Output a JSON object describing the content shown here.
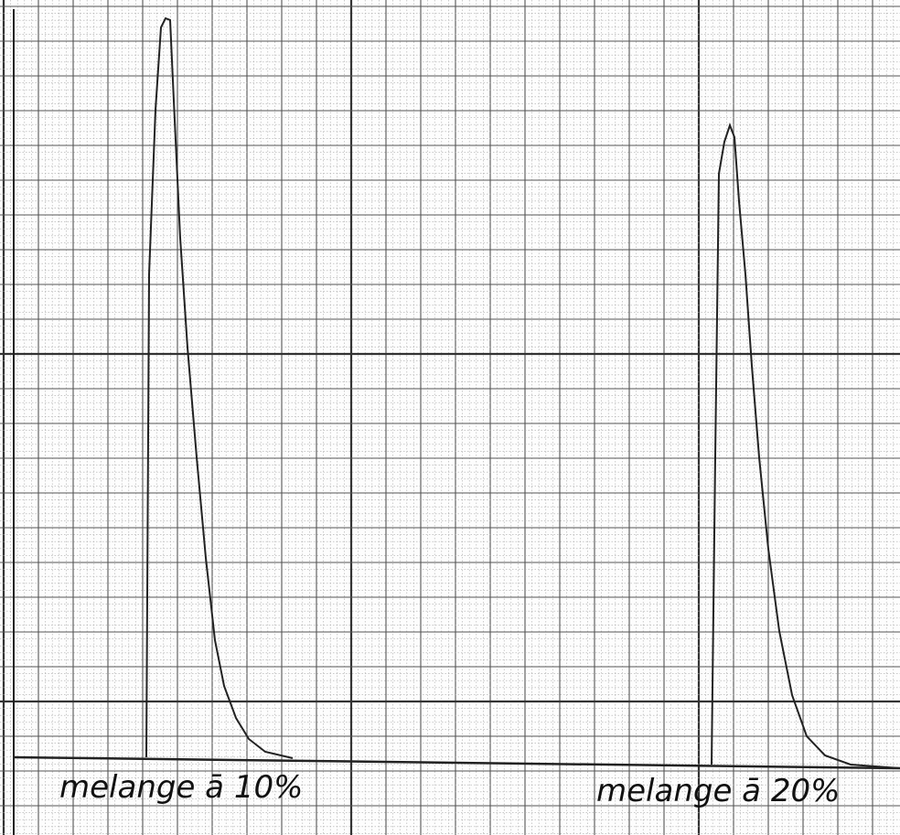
{
  "labels": {
    "left": "melange ā 10%",
    "right": "melange ā 20%"
  }
}
